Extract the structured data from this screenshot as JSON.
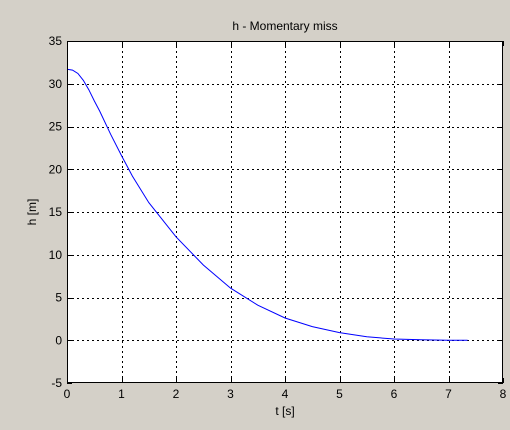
{
  "chart_data": {
    "type": "line",
    "title": "h - Momentary miss",
    "xlabel": "t [s]",
    "ylabel": "h [m]",
    "xlim": [
      0,
      8
    ],
    "ylim": [
      -5,
      35
    ],
    "xticks": [
      0,
      1,
      2,
      3,
      4,
      5,
      6,
      7,
      8
    ],
    "yticks": [
      -5,
      0,
      5,
      10,
      15,
      20,
      25,
      30,
      35
    ],
    "grid": true,
    "series": [
      {
        "color": "#0000ff",
        "x": [
          0,
          0.1,
          0.2,
          0.3,
          0.4,
          0.5,
          0.6,
          0.8,
          1.0,
          1.2,
          1.5,
          2.0,
          2.5,
          3.0,
          3.5,
          4.0,
          4.5,
          5.0,
          5.5,
          6.0,
          6.5,
          7.0,
          7.35
        ],
        "y": [
          31.7,
          31.6,
          31.2,
          30.4,
          29.3,
          28.0,
          26.8,
          24.1,
          21.6,
          19.2,
          16.1,
          12.1,
          8.8,
          6.1,
          4.1,
          2.6,
          1.6,
          0.9,
          0.4,
          0.15,
          0.05,
          0.0,
          0.0
        ]
      }
    ]
  }
}
